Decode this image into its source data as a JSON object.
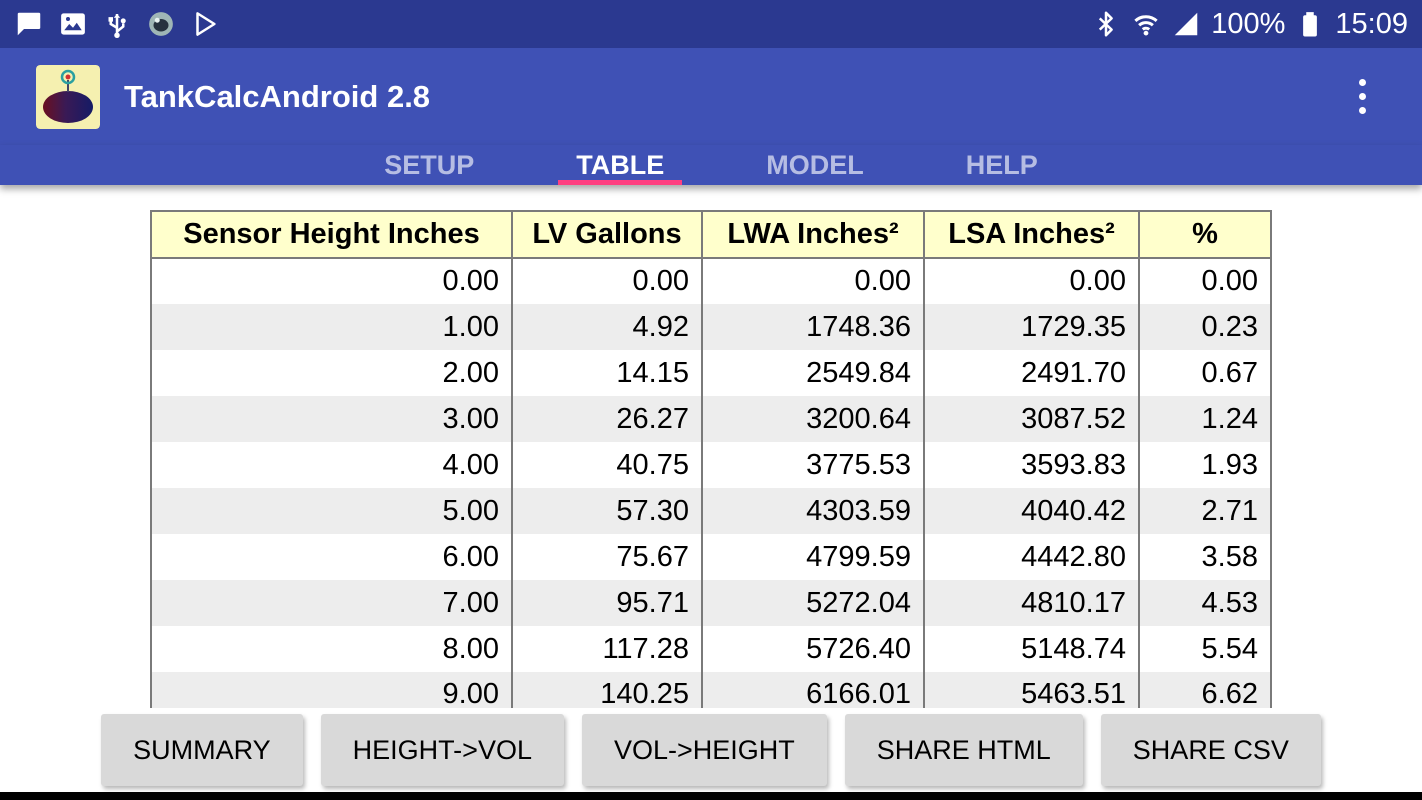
{
  "status_bar": {
    "time": "15:09",
    "battery_percent": "100%",
    "icons_left": [
      "chat-icon",
      "gallery-icon",
      "usb-icon",
      "screenshot-app-icon",
      "play-store-icon"
    ],
    "icons_right": [
      "bluetooth-icon",
      "wifi-icon",
      "signal-icon",
      "battery-icon"
    ]
  },
  "app_bar": {
    "title": "TankCalcAndroid 2.8"
  },
  "tabs": [
    {
      "label": "SETUP",
      "selected": false
    },
    {
      "label": "TABLE",
      "selected": true
    },
    {
      "label": "MODEL",
      "selected": false
    },
    {
      "label": "HELP",
      "selected": false
    }
  ],
  "table": {
    "columns": [
      "Sensor Height Inches",
      "LV Gallons",
      "LWA Inches²",
      "LSA Inches²",
      "%"
    ],
    "rows": [
      [
        "0.00",
        "0.00",
        "0.00",
        "0.00",
        "0.00"
      ],
      [
        "1.00",
        "4.92",
        "1748.36",
        "1729.35",
        "0.23"
      ],
      [
        "2.00",
        "14.15",
        "2549.84",
        "2491.70",
        "0.67"
      ],
      [
        "3.00",
        "26.27",
        "3200.64",
        "3087.52",
        "1.24"
      ],
      [
        "4.00",
        "40.75",
        "3775.53",
        "3593.83",
        "1.93"
      ],
      [
        "5.00",
        "57.30",
        "4303.59",
        "4040.42",
        "2.71"
      ],
      [
        "6.00",
        "75.67",
        "4799.59",
        "4442.80",
        "3.58"
      ],
      [
        "7.00",
        "95.71",
        "5272.04",
        "4810.17",
        "4.53"
      ],
      [
        "8.00",
        "117.28",
        "5726.40",
        "5148.74",
        "5.54"
      ],
      [
        "9.00",
        "140.25",
        "6166.01",
        "5463.51",
        "6.62"
      ]
    ]
  },
  "buttons": [
    "SUMMARY",
    "HEIGHT->VOL",
    "VOL->HEIGHT",
    "SHARE HTML",
    "SHARE CSV"
  ],
  "colors": {
    "status_bar_bg": "#2B3990",
    "app_bar_bg": "#3F51B5",
    "tab_underline": "#FF4081",
    "table_header_bg": "#FFFFCC",
    "row_alt_bg": "#EDEDED",
    "button_bg": "#D9D9D9"
  }
}
